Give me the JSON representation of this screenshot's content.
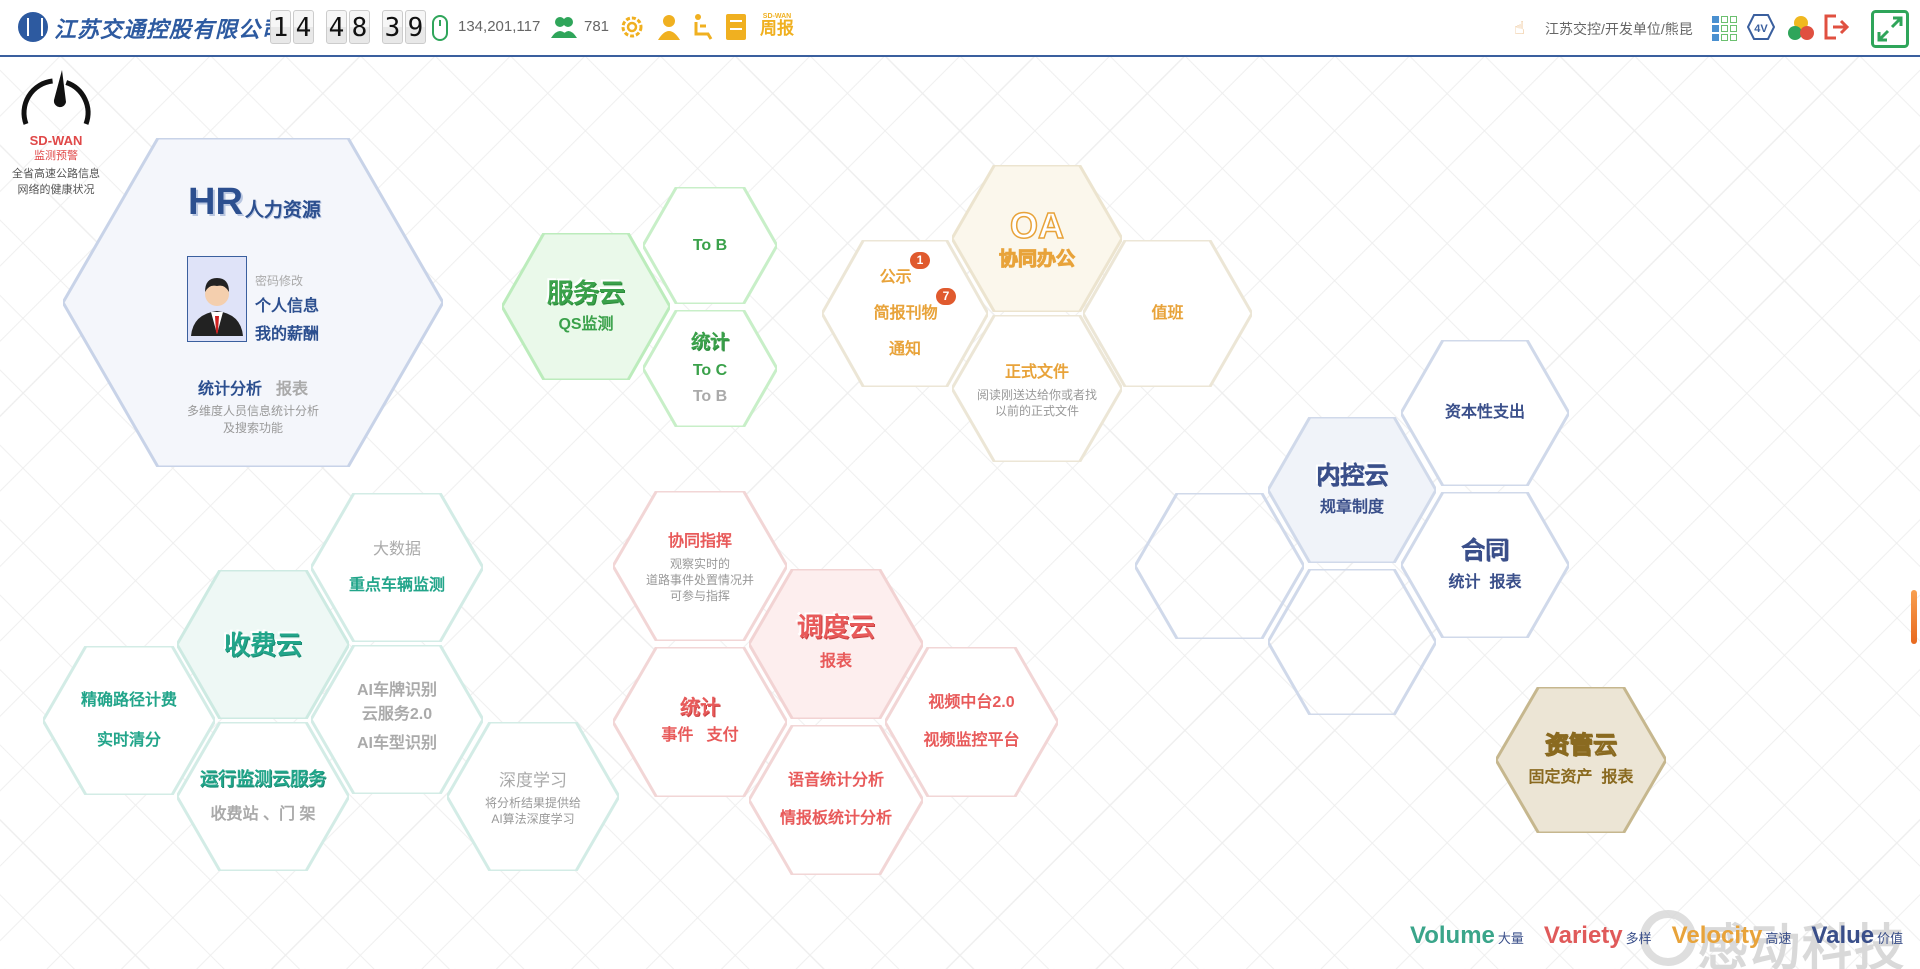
{
  "header": {
    "company": "江苏交通控股有限公司",
    "clock": {
      "hh": [
        "1",
        "4"
      ],
      "mm": [
        "4",
        "8"
      ],
      "ss": [
        "3",
        "9"
      ]
    },
    "clicks": "134,201,117",
    "online_users": "781",
    "weekly_report": {
      "top": "SD-WAN",
      "bottom": "周报"
    },
    "user_path": "江苏交控/开发单位/熊昆",
    "fourv": "4V",
    "colors": {
      "brand": "#2d5aa0",
      "divider": "#3a5f9e"
    }
  },
  "sdwan": {
    "title": "SD-WAN",
    "subtitle": "监测预警",
    "desc1": "全省高速公路信息",
    "desc2": "网络的健康状况"
  },
  "hr": {
    "title": "HR",
    "title_cn": "人力资源",
    "pwd": "密码修改",
    "info": "个人信息",
    "salary": "我的薪酬",
    "stats": "统计分析",
    "report": "报表",
    "desc1": "多维度人员信息统计分析",
    "desc2": "及搜索功能"
  },
  "service": {
    "title": "服务云",
    "sub": "QS监测",
    "tob": "To B",
    "stat": "统计",
    "toc": "To C",
    "tob2": "To B"
  },
  "oa": {
    "title": "OA",
    "sub": "协同办公",
    "notice": "公示",
    "notice_badge": "1",
    "brief": "简报刊物",
    "brief_badge": "7",
    "inform": "通知",
    "duty": "值班",
    "formal": "正式文件",
    "formal_desc1": "阅读刚送达给你或者找",
    "formal_desc2": "以前的正式文件"
  },
  "internal": {
    "title": "内控云",
    "sub": "规章制度",
    "capex": "资本性支出",
    "contract": "合同",
    "contract_sub": "统计  报表"
  },
  "assets": {
    "title": "资管云",
    "sub": "固定资产  报表"
  },
  "toll": {
    "title": "收费云",
    "bigdata": "大数据",
    "vehicle": "重点车辆监测",
    "path": "精确路径计费",
    "clear": "实时清分",
    "plate1": "AI车牌识别",
    "plate2": "云服务2.0",
    "model": "AI车型识别",
    "ops": "运行监测云服务",
    "station": "收费站 、门 架",
    "dl": "深度学习",
    "dl_desc1": "将分析结果提供给",
    "dl_desc2": "AI算法深度学习"
  },
  "dispatch": {
    "title": "调度云",
    "sub": "报表",
    "cmd": "协同指挥",
    "cmd_desc1": "观察实时的",
    "cmd_desc2": "道路事件处置情况并",
    "cmd_desc3": "可参与指挥",
    "stat": "统计",
    "stat_sub": "事件   支付",
    "video1": "视频中台2.0",
    "video2": "视频监控平台",
    "voice": "语音统计分析",
    "intel": "情报板统计分析"
  },
  "footer": {
    "volume": "Volume",
    "volume_cn": "大量",
    "variety": "Variety",
    "variety_cn": "多样",
    "velocity": "Velocity",
    "velocity_cn": "高速",
    "value": "Value",
    "value_cn": "价值",
    "watermark": "感动科技"
  }
}
